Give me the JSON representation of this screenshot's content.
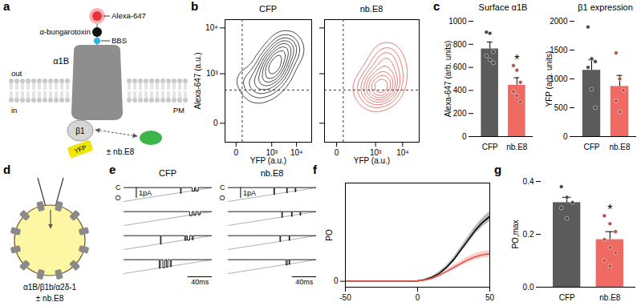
{
  "chart_data": [
    {
      "panel_label": "b",
      "type": "contour",
      "title": "CFP",
      "x_label": "YFP (a.u.)",
      "y_label": "Alexa-647 (a.u.)",
      "log": true,
      "xlim": [
        -70,
        40000
      ],
      "ylim": [
        -150,
        15000
      ],
      "xticks": [
        0,
        {
          "value": 1000,
          "label": "10³"
        },
        {
          "value": 10000,
          "label": "10⁴"
        }
      ],
      "yticks": [
        0,
        {
          "value": 1000,
          "label": "10³"
        },
        {
          "value": 10000,
          "label": "10⁴"
        }
      ],
      "gates": {
        "x": 30,
        "y": 400
      },
      "color": "#000000",
      "points": {
        "x": [
          200,
          400,
          600,
          800,
          1000,
          1200,
          1500,
          1800,
          2000,
          2500,
          3000,
          4000,
          5000,
          8000,
          300,
          700,
          1000,
          1500,
          2000,
          3000,
          600,
          1200,
          2500,
          100,
          50
        ],
        "y": [
          300,
          600,
          900,
          1200,
          1500,
          1800,
          2000,
          2500,
          3000,
          3500,
          4000,
          5000,
          4000,
          3000,
          1000,
          2000,
          800,
          1200,
          1000,
          2000,
          400,
          600,
          1500,
          500,
          800
        ]
      }
    },
    {
      "type": "contour",
      "title": "nb.E8",
      "x_label": "YFP (a.u.)",
      "log": true,
      "xlim": [
        -70,
        40000
      ],
      "ylim": [
        -150,
        15000
      ],
      "xticks": [
        0,
        {
          "value": 1000,
          "label": "10³"
        },
        {
          "value": 10000,
          "label": "10⁴"
        }
      ],
      "yticks": [
        0,
        {
          "value": 1000,
          "label": "10³"
        },
        {
          "value": 10000,
          "label": "10⁴"
        }
      ],
      "tick_labels": "x",
      "gates": {
        "x": 30,
        "y": 400
      },
      "color": "#e0473d",
      "points": {
        "x": [
          500,
          800,
          1000,
          1500,
          2000,
          2500,
          3000,
          4000,
          5000,
          1200,
          1800,
          2500,
          3500,
          6000,
          800,
          1500,
          2200,
          3000,
          1000,
          2000,
          700,
          300
        ],
        "y": [
          300,
          400,
          500,
          600,
          700,
          500,
          400,
          600,
          800,
          1500,
          2000,
          3000,
          2500,
          1500,
          200,
          250,
          300,
          1200,
          900,
          400,
          800,
          500
        ]
      }
    },
    {
      "panel_label": "c",
      "type": "bar",
      "title": "Surface α1B",
      "y_label": "Alexa-647 (arb. units)",
      "categories": [
        "CFP",
        "nb.E8"
      ],
      "values": [
        760,
        445
      ],
      "errors": [
        60,
        65
      ],
      "points": [
        [
          905,
          895,
          735,
          700,
          665,
          640
        ],
        [
          615,
          575,
          470,
          390,
          355,
          300
        ]
      ],
      "colors": [
        "#5b5b5b",
        "#ef6a62"
      ],
      "ylim": [
        0,
        1000
      ],
      "yticks": [
        0,
        200,
        400,
        600,
        800,
        1000
      ],
      "annotations": [
        {
          "category": "nb.E8",
          "text": "*"
        }
      ]
    },
    {
      "type": "bar",
      "title": "β1 expression",
      "y_label": "YFP (arb. units)",
      "categories": [
        "CFP",
        "nb.E8"
      ],
      "values": [
        1150,
        870
      ],
      "errors": [
        180,
        190
      ],
      "points": [
        [
          1900,
          1350,
          1300,
          1200,
          820,
          500
        ],
        [
          1450,
          1000,
          800,
          620,
          430
        ]
      ],
      "colors": [
        "#5b5b5b",
        "#ef6a62"
      ],
      "ylim": [
        0,
        2000
      ],
      "yticks": [
        0,
        500,
        1000,
        1500,
        2000
      ]
    },
    {
      "panel_label": "e",
      "type": "trace",
      "title": "CFP",
      "tick_labels": false,
      "xlim": [
        0,
        145
      ],
      "ylim": [
        -1.6,
        0.5
      ],
      "color": "#000000",
      "open_level": {
        "t": [
          0,
          145
        ],
        "current": [
          -1.3,
          0
        ]
      },
      "levels": {
        "closed": {
          "label": "C",
          "current": 0
        },
        "open": {
          "label": "O",
          "current": -1
        }
      },
      "scale_bars": {
        "current": 1,
        "current_label": "1pA",
        "time": 40,
        "time_label": "40ms"
      },
      "sweeps": [
        [
          [
            93,
            94,
            -0.55
          ],
          [
            112,
            116,
            -0.35
          ],
          [
            118,
            122,
            -0.33
          ]
        ],
        [
          [
            108,
            112,
            -0.38
          ],
          [
            115,
            118,
            -0.35
          ],
          [
            122,
            125,
            -0.3
          ]
        ],
        [
          [
            60,
            61,
            -0.8
          ],
          [
            100,
            102,
            -0.45
          ],
          [
            104,
            108,
            -0.43
          ],
          [
            112,
            114,
            -0.38
          ]
        ],
        [
          [
            58,
            60,
            -0.8
          ],
          [
            64,
            67,
            -0.75
          ],
          [
            70,
            72,
            -0.7
          ],
          [
            76,
            78,
            -0.65
          ]
        ]
      ]
    },
    {
      "type": "trace",
      "title": "nb.E8",
      "tick_labels": false,
      "xlim": [
        0,
        145
      ],
      "ylim": [
        -1.6,
        0.5
      ],
      "color": "#000000",
      "open_level": {
        "t": [
          0,
          145
        ],
        "current": [
          -1.3,
          0
        ]
      },
      "levels": {
        "closed": {
          "label": "C",
          "current": 0
        },
        "open": {
          "label": "O",
          "current": -1
        }
      },
      "scale_bars": {
        "current": 1,
        "current_label": "1pA",
        "time": 40,
        "time_label": "40ms"
      },
      "sweeps": [
        [
          [
            75,
            76,
            -0.65
          ],
          [
            96,
            97,
            -0.5
          ],
          [
            110,
            111,
            -0.4
          ]
        ],
        [
          [
            88,
            89,
            -0.55
          ],
          [
            104,
            105,
            -0.45
          ],
          [
            118,
            119,
            -0.35
          ]
        ],
        [
          [
            85,
            86,
            -0.55
          ],
          [
            100,
            101,
            -0.45
          ]
        ],
        [
          [
            95,
            97,
            -0.5
          ],
          [
            100,
            101,
            -0.45
          ]
        ]
      ]
    },
    {
      "panel_label": "f",
      "type": "line",
      "y_label": "PO",
      "x": [
        -50,
        -45,
        -40,
        -35,
        -30,
        -25,
        -20,
        -15,
        -10,
        -5,
        0,
        5,
        10,
        15,
        20,
        25,
        30,
        35,
        40,
        45,
        50
      ],
      "series": [
        {
          "color": "#000000",
          "values": [
            0,
            0,
            0,
            0,
            0,
            0,
            0,
            0,
            0,
            0,
            0.002,
            0.008,
            0.02,
            0.04,
            0.07,
            0.11,
            0.16,
            0.21,
            0.26,
            0.3,
            0.33
          ],
          "errors": [
            0,
            0,
            0,
            0,
            0,
            0,
            0,
            0,
            0,
            0,
            0.002,
            0.004,
            0.006,
            0.008,
            0.01,
            0.012,
            0.015,
            0.018,
            0.02,
            0.022,
            0.025
          ]
        },
        {
          "color": "#e8564c",
          "values": [
            0,
            0,
            0,
            0,
            0,
            0,
            0,
            0,
            0,
            0,
            0.002,
            0.006,
            0.015,
            0.03,
            0.05,
            0.07,
            0.09,
            0.11,
            0.125,
            0.135,
            0.14
          ],
          "errors": [
            0,
            0,
            0,
            0,
            0,
            0,
            0,
            0,
            0,
            0,
            0.002,
            0.003,
            0.005,
            0.007,
            0.009,
            0.011,
            0.013,
            0.015,
            0.016,
            0.017,
            0.018
          ]
        }
      ],
      "xlim": [
        -50,
        50
      ],
      "xticks": [
        -50,
        0,
        50
      ],
      "ylim": [
        -0.03,
        0.5
      ],
      "yticks": [
        0
      ]
    },
    {
      "panel_label": "g",
      "type": "bar",
      "y_label": "PO,max",
      "categories": [
        "CFP",
        "nb.E8"
      ],
      "values": [
        0.32,
        0.18
      ],
      "errors": [
        0.02,
        0.03
      ],
      "points": [
        [
          0.38,
          0.34,
          0.32,
          0.3,
          0.26
        ],
        [
          0.27,
          0.24,
          0.21,
          0.18,
          0.15,
          0.13,
          0.1,
          0.08
        ]
      ],
      "colors": [
        "#5b5b5b",
        "#ef6a62"
      ],
      "ylim": [
        0,
        0.4
      ],
      "yticks": [
        {
          "value": 0,
          "label": "0.0"
        },
        {
          "value": 0.2,
          "label": "0.2"
        },
        {
          "value": 0.4,
          "label": "0.4"
        }
      ],
      "annotations": [
        {
          "category": "nb.E8",
          "text": "*"
        }
      ]
    }
  ],
  "diagrams": [
    {
      "panel_label": "a",
      "labels": {
        "alexa": "Alexa-647",
        "btx": "α-bungarotoxin",
        "bbs": "BBS",
        "alpha": "α1B",
        "out": "out",
        "in": "in",
        "pm": "PM",
        "beta": "β1",
        "yfp": "YFP",
        "nb": "± nb.E8"
      }
    },
    {
      "panel_label": "d",
      "labels": {
        "subunits": "α1B/β1b/α2δ-1",
        "nb": "± nb.E8"
      }
    }
  ]
}
